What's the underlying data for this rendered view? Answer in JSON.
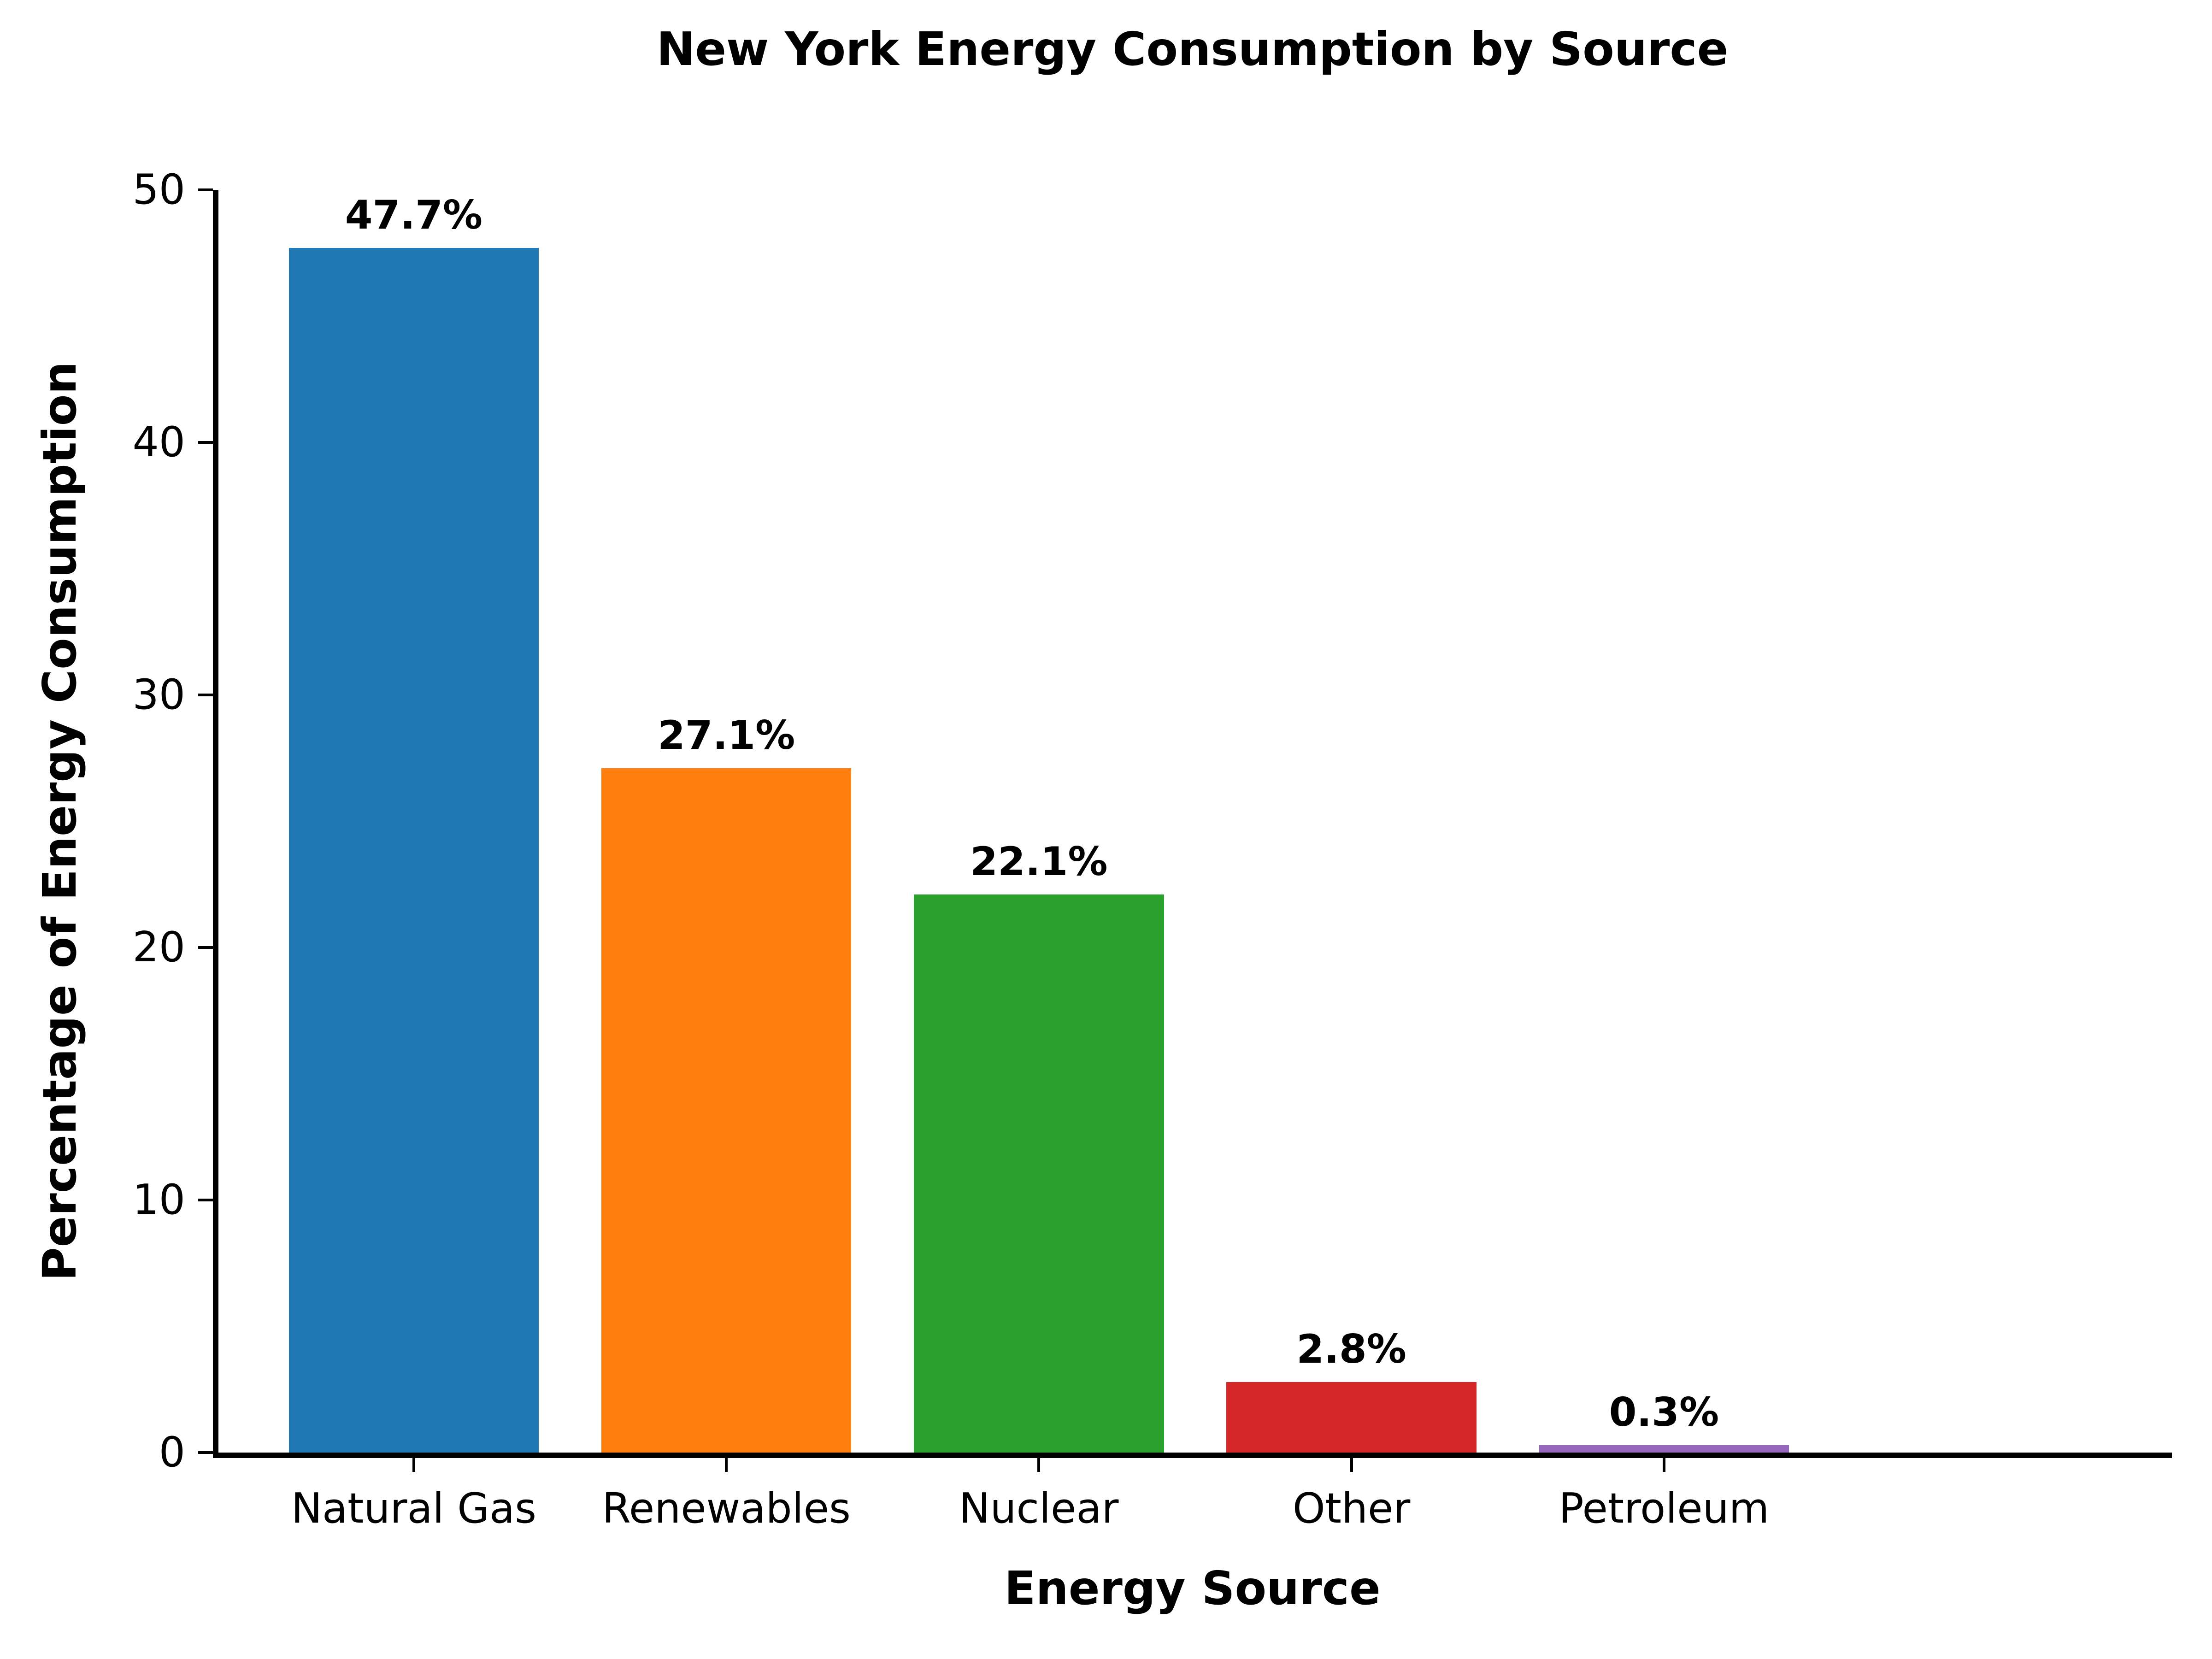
{
  "title": "New York Energy Consumption by Source",
  "chart_data": {
    "type": "bar",
    "title": "New York Energy Consumption by Source",
    "xlabel": "Energy Source",
    "ylabel": "Percentage of Energy Consumption",
    "categories": [
      "Natural Gas",
      "Renewables",
      "Nuclear",
      "Other",
      "Petroleum"
    ],
    "values": [
      47.7,
      27.1,
      22.1,
      2.8,
      0.3
    ],
    "value_labels": [
      "47.7%",
      "27.1%",
      "22.1%",
      "2.8%",
      "0.3%"
    ],
    "bar_colors": [
      "#1f77b4",
      "#ff7f0e",
      "#2ca02c",
      "#d62728",
      "#9467bd"
    ],
    "ylim": [
      0,
      50
    ],
    "yticks": [
      0,
      10,
      20,
      30,
      40,
      50
    ],
    "grid": false,
    "legend": false,
    "axis_color": "#000000",
    "text_color": "#000000",
    "background_color": "#ffffff"
  }
}
